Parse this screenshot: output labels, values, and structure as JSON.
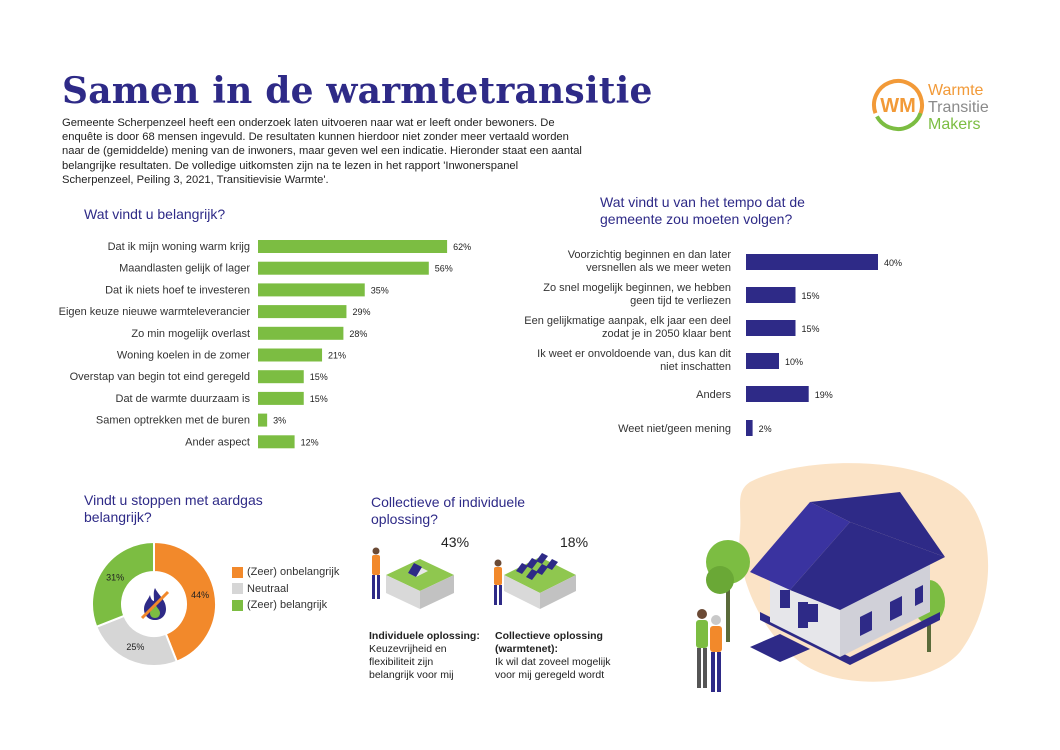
{
  "title": "Samen in de warmtetransitie",
  "intro": "Gemeente Scherpenzeel heeft een onderzoek laten uitvoeren naar wat er leeft onder bewoners. De enquête is door 68 mensen ingevuld. De resultaten kunnen hierdoor niet zonder meer vertaald worden naar de (gemiddelde) mening van de inwoners, maar geven wel een indicatie. Hieronder staat een aantal belangrijke resultaten. De volledige uitkomsten zijn na te lezen in het rapport 'Inwonerspanel Scherpenzeel, Peiling 3, 2021, Transitievisie Warmte'.",
  "logo": {
    "initials": "WM",
    "line1": "Warmte",
    "line2": "Transitie",
    "line3": "Makers",
    "color_orange": "#f29a38",
    "color_green": "#7cbd42"
  },
  "colors": {
    "title": "#2e2a87",
    "green": "#7cbd42",
    "purple": "#2e2a87",
    "orange": "#f2892b",
    "gray": "#d6d6d6"
  },
  "chart_data": [
    {
      "type": "bar",
      "orientation": "horizontal",
      "title": "Wat vindt u belangrijk?",
      "categories": [
        "Dat ik mijn woning warm krijg",
        "Maandlasten gelijk of lager",
        "Dat ik niets hoef te investeren",
        "Eigen keuze nieuwe warmteleverancier",
        "Zo min mogelijk overlast",
        "Woning koelen in de zomer",
        "Overstap van begin tot eind geregeld",
        "Dat de warmte duurzaam is",
        "Samen optrekken met de buren",
        "Ander aspect"
      ],
      "values": [
        62,
        56,
        35,
        29,
        28,
        21,
        15,
        15,
        3,
        12
      ],
      "value_labels": [
        "62%",
        "56%",
        "35%",
        "29%",
        "28%",
        "21%",
        "15%",
        "15%",
        "3%",
        "12%"
      ],
      "unit": "%",
      "color": "#7cbd42"
    },
    {
      "type": "bar",
      "orientation": "horizontal",
      "title": "Wat vindt u van het tempo dat de gemeente zou moeten volgen?",
      "categories": [
        [
          "Voorzichtig beginnen en dan later",
          "versnellen als we meer weten"
        ],
        [
          "Zo snel mogelijk beginnen, we hebben",
          "geen tijd te verliezen"
        ],
        [
          "Een gelijkmatige aanpak, elk jaar een deel",
          "zodat je in 2050 klaar bent"
        ],
        [
          "Ik weet er onvoldoende van, dus kan dit",
          "niet inschatten"
        ],
        [
          "Anders"
        ],
        [
          "Weet niet/geen mening"
        ]
      ],
      "values": [
        40,
        15,
        15,
        10,
        19,
        2
      ],
      "value_labels": [
        "40%",
        "15%",
        "15%",
        "10%",
        "19%",
        "2%"
      ],
      "unit": "%",
      "color": "#2e2a87"
    },
    {
      "type": "pie",
      "title": "Vindt u stoppen met aardgas belangrijk?",
      "labels": [
        "(Zeer) onbelangrijk",
        "Neutraal",
        "(Zeer) belangrijk"
      ],
      "values": [
        44,
        25,
        31
      ],
      "value_labels": [
        "44%",
        "25%",
        "31%"
      ],
      "colors": [
        "#f2892b",
        "#d6d6d6",
        "#7cbd42"
      ],
      "legend": "right"
    },
    {
      "type": "table",
      "title": "Collectieve of individuele oplossing?",
      "options": [
        {
          "value": 43,
          "value_label": "43%",
          "heading": "Individuele oplossing:",
          "text": [
            "Keuzevrijheid en",
            "flexibiliteit zijn",
            "belangrijk voor mij"
          ]
        },
        {
          "value": 18,
          "value_label": "18%",
          "heading": "Collectieve oplossing (warmtenet):",
          "text": [
            "Ik wil dat zoveel mogelijk",
            "voor mij geregeld wordt"
          ]
        }
      ]
    }
  ],
  "icons": {
    "flame": "no-gas-flame-icon",
    "house": "house-illustration",
    "tree": "tree-icon",
    "person": "person-icon"
  }
}
